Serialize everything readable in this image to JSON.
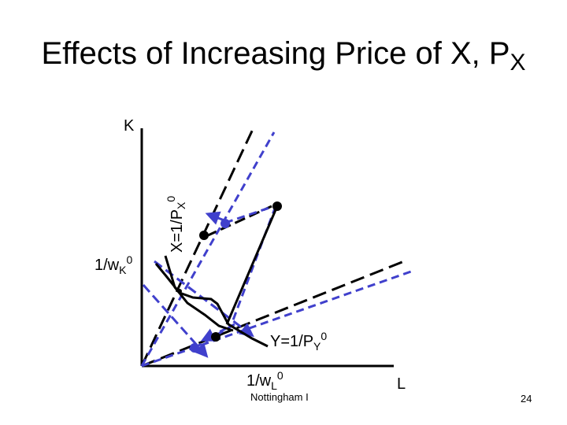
{
  "title": {
    "text": "Effects of Increasing Price of X, P",
    "sub": "X"
  },
  "axes": {
    "y_label": "K",
    "x_label": "L"
  },
  "labels": {
    "wk_base": "1/w",
    "wk_sub": "K",
    "wk_sup": "0",
    "wl_base": "1/w",
    "wl_sub": "L",
    "wl_sup": "0",
    "x_iso_base": "X=1/P",
    "x_iso_sub": "X",
    "x_iso_sup": "0",
    "y_iso_base": "Y=1/P",
    "y_iso_sub": "Y",
    "y_iso_sup": "0"
  },
  "footer": {
    "left": "Nottingham I",
    "page": "24"
  },
  "colors": {
    "black": "#000000",
    "blue": "#4040cc"
  }
}
